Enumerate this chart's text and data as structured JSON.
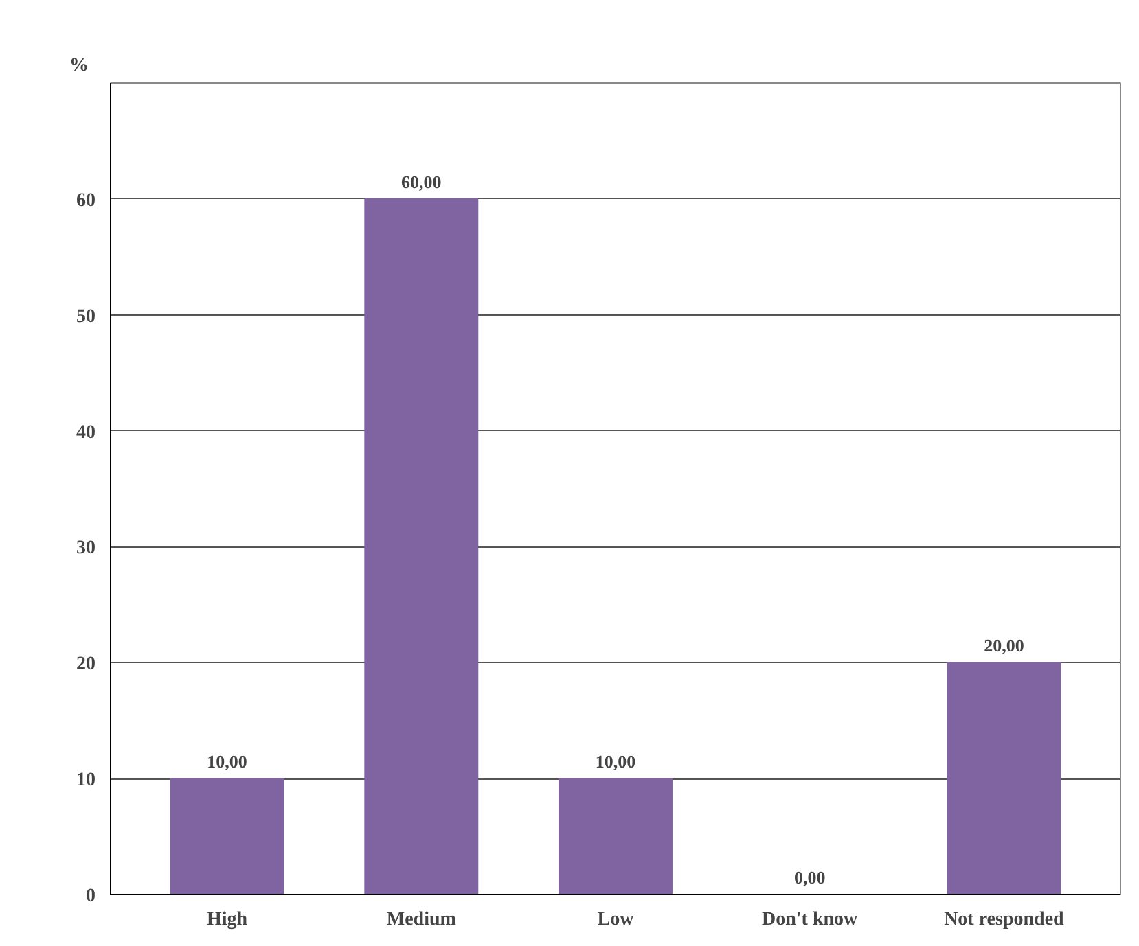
{
  "chart_data": {
    "type": "bar",
    "ylabel": "%",
    "categories": [
      "High",
      "Medium",
      "Low",
      "Don't know",
      "Not responded"
    ],
    "values": [
      10,
      60,
      10,
      0,
      20
    ],
    "value_labels": [
      "10,00",
      "60,00",
      "10,00",
      "0,00",
      "20,00"
    ],
    "color": "#8064a2",
    "ylim": [
      0,
      70
    ],
    "yticks": [
      0,
      10,
      20,
      30,
      40,
      50,
      60
    ],
    "grid": "y"
  }
}
